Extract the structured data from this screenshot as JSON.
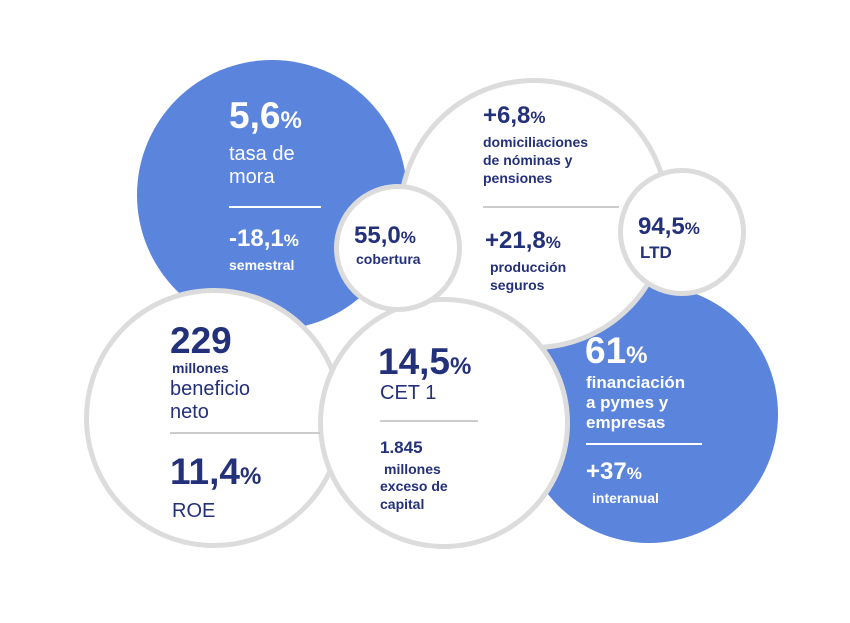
{
  "tasa_mora": {
    "value": "5,6",
    "unit": "%",
    "label_line1": "tasa de",
    "label_line2": "mora",
    "change": "-18,1",
    "change_unit": "%",
    "change_label": "semestral"
  },
  "cobertura": {
    "value": "55,0",
    "unit": "%",
    "label": "cobertura"
  },
  "domiciliaciones": {
    "value": "+6,8",
    "unit": "%",
    "label_line1": "domiciliaciones",
    "label_line2": "de nóminas y",
    "label_line3": "pensiones"
  },
  "seguros": {
    "value": "+21,8",
    "unit": "%",
    "label_line1": "producción",
    "label_line2": "seguros"
  },
  "ltd": {
    "value": "94,5",
    "unit": "%",
    "label": "LTD"
  },
  "beneficio": {
    "value": "229",
    "unit_label": "millones",
    "label_line1": "beneficio",
    "label_line2": "neto"
  },
  "roe": {
    "value": "11,4",
    "unit": "%",
    "label": "ROE"
  },
  "cet1": {
    "value": "14,5",
    "unit": "%",
    "label": "CET 1",
    "excess_value": "1.845",
    "excess_unit": "millones",
    "excess_line1": "exceso de",
    "excess_line2": "capital"
  },
  "financiacion": {
    "value": "61",
    "unit": "%",
    "label_line1": "financiación",
    "label_line2": "a pymes y",
    "label_line3": "empresas",
    "change": "+37",
    "change_unit": "%",
    "change_label": "interanual"
  },
  "colors": {
    "blue": "#5b84dc",
    "navy": "#23307a",
    "ring": "#dcdcdc",
    "white": "#ffffff"
  }
}
